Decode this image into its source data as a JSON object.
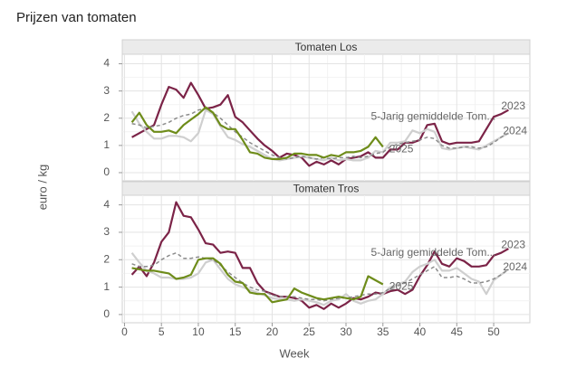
{
  "title": "Prijzen van tomaten",
  "ylabel": "euro / kg",
  "chart_data": [
    {
      "type": "line",
      "title": "Tomaten Los",
      "x": [
        1,
        2,
        3,
        4,
        5,
        6,
        7,
        8,
        9,
        10,
        11,
        12,
        13,
        14,
        15,
        16,
        17,
        18,
        19,
        20,
        21,
        22,
        23,
        24,
        25,
        26,
        27,
        28,
        29,
        30,
        31,
        32,
        33,
        34,
        35,
        36,
        37,
        38,
        39,
        40,
        41,
        42,
        43,
        44,
        45,
        46,
        47,
        48,
        49,
        50,
        51,
        52
      ],
      "xlim": [
        -0.3,
        54.9
      ],
      "xticks": [
        0,
        5,
        10,
        15,
        20,
        25,
        30,
        35,
        40,
        45,
        50
      ],
      "ylim": [
        -0.3,
        4.35
      ],
      "yticks": [
        0,
        1,
        2,
        3,
        4
      ],
      "grid": true,
      "series": [
        {
          "name": "2023",
          "color": "#7b2347",
          "style": "solid",
          "values": [
            1.3,
            1.45,
            1.6,
            1.75,
            2.5,
            3.15,
            3.05,
            2.75,
            3.3,
            2.85,
            2.35,
            2.4,
            2.5,
            2.85,
            2.05,
            1.85,
            1.55,
            1.25,
            1.0,
            0.8,
            0.55,
            0.7,
            0.65,
            0.55,
            0.25,
            0.4,
            0.3,
            0.45,
            0.3,
            0.5,
            0.55,
            0.6,
            0.75,
            0.55,
            0.55,
            0.85,
            0.85,
            1.1,
            1.1,
            1.2,
            1.75,
            1.8,
            1.15,
            1.05,
            1.1,
            1.1,
            1.1,
            1.15,
            1.6,
            2.05,
            2.15,
            2.3
          ]
        },
        {
          "name": "2024",
          "color": "#cfcfcf",
          "style": "solid",
          "values": [
            2.25,
            1.8,
            1.5,
            1.25,
            1.25,
            1.35,
            1.35,
            1.3,
            1.15,
            1.45,
            2.3,
            2.15,
            1.7,
            1.3,
            1.2,
            1.05,
            0.95,
            0.8,
            0.65,
            0.5,
            0.45,
            0.5,
            0.55,
            0.6,
            0.55,
            0.5,
            0.45,
            0.55,
            0.45,
            0.5,
            0.45,
            0.45,
            0.55,
            0.8,
            0.75,
            1.1,
            1.1,
            1.15,
            1.55,
            1.45,
            1.6,
            1.5,
            0.9,
            0.85,
            0.9,
            0.95,
            0.9,
            0.85,
            1.0,
            1.15,
            1.3,
            1.45
          ]
        },
        {
          "name": "5-Jarig gemiddelde Tom...",
          "color": "#8c8c8c",
          "style": "dashed",
          "values": [
            1.8,
            1.75,
            1.65,
            1.7,
            1.75,
            1.85,
            2.0,
            2.1,
            2.15,
            2.3,
            2.35,
            2.2,
            2.0,
            1.75,
            1.5,
            1.3,
            1.1,
            0.95,
            0.8,
            0.65,
            0.55,
            0.5,
            0.55,
            0.6,
            0.55,
            0.5,
            0.55,
            0.5,
            0.55,
            0.55,
            0.6,
            0.55,
            0.6,
            0.7,
            0.75,
            0.95,
            1.05,
            1.1,
            1.15,
            1.2,
            1.3,
            1.25,
            1.0,
            0.9,
            0.9,
            0.95,
            0.95,
            0.9,
            0.95,
            1.1,
            1.3,
            1.45
          ]
        },
        {
          "name": "2025",
          "color": "#6e8c1a",
          "style": "solid",
          "values": [
            1.85,
            2.2,
            1.75,
            1.5,
            1.5,
            1.55,
            1.45,
            1.75,
            1.95,
            2.15,
            2.4,
            2.2,
            1.75,
            1.6,
            1.6,
            1.2,
            0.75,
            0.7,
            0.55,
            0.5,
            0.5,
            0.55,
            0.7,
            0.7,
            0.65,
            0.65,
            0.55,
            0.65,
            0.6,
            0.75,
            0.75,
            0.8,
            0.95,
            1.3,
            0.95,
            null,
            null,
            null,
            null,
            null,
            null,
            null,
            null,
            null,
            null,
            null,
            null,
            null,
            null,
            null,
            null,
            null
          ]
        }
      ]
    },
    {
      "type": "line",
      "title": "Tomaten Tros",
      "xlabel": "Week",
      "x": [
        1,
        2,
        3,
        4,
        5,
        6,
        7,
        8,
        9,
        10,
        11,
        12,
        13,
        14,
        15,
        16,
        17,
        18,
        19,
        20,
        21,
        22,
        23,
        24,
        25,
        26,
        27,
        28,
        29,
        30,
        31,
        32,
        33,
        34,
        35,
        36,
        37,
        38,
        39,
        40,
        41,
        42,
        43,
        44,
        45,
        46,
        47,
        48,
        49,
        50,
        51,
        52
      ],
      "xlim": [
        -0.3,
        54.9
      ],
      "xticks": [
        0,
        5,
        10,
        15,
        20,
        25,
        30,
        35,
        40,
        45,
        50
      ],
      "ylim": [
        -0.3,
        4.35
      ],
      "yticks": [
        0,
        1,
        2,
        3,
        4
      ],
      "grid": true,
      "series": [
        {
          "name": "2023",
          "color": "#7b2347",
          "style": "solid",
          "values": [
            1.45,
            1.75,
            1.4,
            1.9,
            2.65,
            3.0,
            4.1,
            3.6,
            3.55,
            3.1,
            2.6,
            2.55,
            2.25,
            2.3,
            2.25,
            1.7,
            1.7,
            1.15,
            0.85,
            0.75,
            0.65,
            0.65,
            0.6,
            0.5,
            0.25,
            0.35,
            0.2,
            0.4,
            0.25,
            0.4,
            0.6,
            0.55,
            0.65,
            0.8,
            0.75,
            0.85,
            0.9,
            0.75,
            0.9,
            1.4,
            1.8,
            2.3,
            1.85,
            1.75,
            2.05,
            1.95,
            1.75,
            1.75,
            1.8,
            2.15,
            2.25,
            2.4
          ]
        },
        {
          "name": "2024",
          "color": "#cfcfcf",
          "style": "solid",
          "values": [
            2.25,
            1.9,
            1.6,
            1.5,
            1.35,
            1.35,
            1.3,
            1.3,
            1.35,
            1.5,
            1.9,
            2.0,
            1.65,
            1.3,
            1.1,
            1.0,
            0.9,
            0.8,
            0.7,
            0.6,
            0.55,
            0.55,
            0.5,
            0.55,
            0.5,
            0.45,
            0.35,
            0.5,
            0.55,
            0.75,
            0.5,
            0.4,
            0.5,
            0.55,
            0.75,
            1.0,
            1.1,
            1.2,
            1.55,
            1.75,
            1.85,
            2.0,
            1.6,
            1.6,
            1.7,
            1.5,
            1.3,
            1.2,
            0.75,
            1.25,
            1.45,
            1.65
          ]
        },
        {
          "name": "5-Jarig gemiddelde Tom...",
          "color": "#8c8c8c",
          "style": "dashed",
          "values": [
            1.85,
            1.75,
            1.75,
            1.8,
            2.0,
            2.15,
            2.25,
            2.05,
            2.05,
            2.1,
            2.05,
            2.0,
            1.8,
            1.55,
            1.35,
            1.15,
            1.0,
            0.9,
            0.85,
            0.7,
            0.65,
            0.65,
            0.65,
            0.6,
            0.55,
            0.55,
            0.5,
            0.55,
            0.6,
            0.6,
            0.65,
            0.7,
            0.75,
            0.75,
            0.8,
            0.95,
            1.05,
            1.15,
            1.3,
            1.45,
            1.6,
            1.75,
            1.35,
            1.35,
            1.4,
            1.3,
            1.15,
            1.15,
            1.2,
            1.3,
            1.45,
            1.65
          ]
        },
        {
          "name": "2025",
          "color": "#6e8c1a",
          "style": "solid",
          "values": [
            1.7,
            1.65,
            1.6,
            1.6,
            1.55,
            1.5,
            1.3,
            1.35,
            1.45,
            2.0,
            2.05,
            2.05,
            1.85,
            1.45,
            1.2,
            1.15,
            0.8,
            0.75,
            0.75,
            0.45,
            0.5,
            0.55,
            0.95,
            0.8,
            0.7,
            0.6,
            0.55,
            0.6,
            0.65,
            0.6,
            0.55,
            0.65,
            1.4,
            1.25,
            1.1,
            null,
            null,
            null,
            null,
            null,
            null,
            null,
            null,
            null,
            null,
            null,
            null,
            null,
            null,
            null,
            null,
            null
          ]
        }
      ]
    }
  ]
}
